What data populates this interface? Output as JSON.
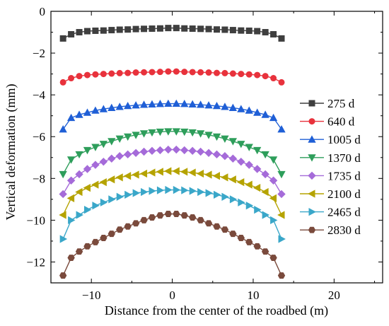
{
  "chart_data": {
    "type": "line",
    "title": "",
    "xlabel": "Distance from the center of the roadbed (m)",
    "ylabel": "Vertical deformation (mm)",
    "xlim": [
      -15,
      26
    ],
    "ylim": [
      -13,
      0
    ],
    "x_ticks": [
      -10,
      0,
      10,
      20
    ],
    "y_ticks": [
      0,
      -2,
      -4,
      -6,
      -8,
      -10,
      -12
    ],
    "grid": false,
    "legend_position": "right",
    "x": [
      -13.5,
      -12.5,
      -11.5,
      -10.5,
      -9.5,
      -8.5,
      -7.5,
      -6.5,
      -5.5,
      -4.5,
      -3.5,
      -2.5,
      -1.5,
      -0.5,
      0.5,
      1.5,
      2.5,
      3.5,
      4.5,
      5.5,
      6.5,
      7.5,
      8.5,
      9.5,
      10.5,
      11.5,
      12.5,
      13.5
    ],
    "series": [
      {
        "name": "275 d",
        "color": "#3f3f3f",
        "marker": "square",
        "values": [
          -1.3,
          -1.1,
          -1.0,
          -0.95,
          -0.93,
          -0.92,
          -0.9,
          -0.88,
          -0.87,
          -0.85,
          -0.84,
          -0.83,
          -0.82,
          -0.8,
          -0.8,
          -0.82,
          -0.83,
          -0.84,
          -0.85,
          -0.87,
          -0.88,
          -0.9,
          -0.92,
          -0.93,
          -0.95,
          -1.0,
          -1.1,
          -1.3
        ]
      },
      {
        "name": "640 d",
        "color": "#e8323c",
        "marker": "circle",
        "values": [
          -3.4,
          -3.2,
          -3.1,
          -3.05,
          -3.02,
          -3.0,
          -2.98,
          -2.96,
          -2.95,
          -2.93,
          -2.92,
          -2.91,
          -2.9,
          -2.88,
          -2.88,
          -2.9,
          -2.91,
          -2.92,
          -2.93,
          -2.95,
          -2.96,
          -2.98,
          -3.0,
          -3.02,
          -3.05,
          -3.1,
          -3.2,
          -3.4
        ]
      },
      {
        "name": "1005 d",
        "color": "#1f5fd6",
        "marker": "triangle-up",
        "values": [
          -5.65,
          -5.1,
          -4.95,
          -4.85,
          -4.75,
          -4.68,
          -4.62,
          -4.57,
          -4.53,
          -4.5,
          -4.47,
          -4.45,
          -4.43,
          -4.42,
          -4.42,
          -4.43,
          -4.45,
          -4.47,
          -4.5,
          -4.53,
          -4.57,
          -4.62,
          -4.68,
          -4.75,
          -4.85,
          -4.95,
          -5.1,
          -5.65
        ]
      },
      {
        "name": "1370 d",
        "color": "#2e9e5b",
        "marker": "triangle-down",
        "values": [
          -7.8,
          -7.1,
          -6.85,
          -6.65,
          -6.5,
          -6.35,
          -6.22,
          -6.1,
          -6.0,
          -5.92,
          -5.85,
          -5.8,
          -5.77,
          -5.75,
          -5.75,
          -5.77,
          -5.8,
          -5.85,
          -5.92,
          -6.0,
          -6.1,
          -6.22,
          -6.35,
          -6.5,
          -6.65,
          -6.85,
          -7.1,
          -7.8
        ]
      },
      {
        "name": "1735 d",
        "color": "#a56bd9",
        "marker": "diamond",
        "values": [
          -8.75,
          -8.1,
          -7.8,
          -7.55,
          -7.35,
          -7.2,
          -7.05,
          -6.93,
          -6.85,
          -6.78,
          -6.72,
          -6.68,
          -6.65,
          -6.62,
          -6.62,
          -6.65,
          -6.68,
          -6.72,
          -6.78,
          -6.85,
          -6.93,
          -7.05,
          -7.2,
          -7.35,
          -7.55,
          -7.8,
          -8.1,
          -8.75
        ]
      },
      {
        "name": "2100 d",
        "color": "#b5a300",
        "marker": "triangle-left",
        "values": [
          -9.75,
          -8.95,
          -8.65,
          -8.45,
          -8.3,
          -8.18,
          -8.05,
          -7.95,
          -7.88,
          -7.82,
          -7.77,
          -7.72,
          -7.68,
          -7.65,
          -7.65,
          -7.68,
          -7.72,
          -7.77,
          -7.82,
          -7.88,
          -7.95,
          -8.05,
          -8.18,
          -8.3,
          -8.45,
          -8.65,
          -8.95,
          -9.75
        ]
      },
      {
        "name": "2465 d",
        "color": "#3aa7c9",
        "marker": "triangle-right",
        "values": [
          -10.9,
          -10.0,
          -9.75,
          -9.5,
          -9.3,
          -9.15,
          -9.0,
          -8.88,
          -8.78,
          -8.7,
          -8.65,
          -8.6,
          -8.57,
          -8.55,
          -8.55,
          -8.57,
          -8.6,
          -8.65,
          -8.7,
          -8.78,
          -8.88,
          -9.0,
          -9.15,
          -9.3,
          -9.5,
          -9.75,
          -10.0,
          -10.9
        ]
      },
      {
        "name": "2830 d",
        "color": "#7a4a3c",
        "marker": "hexagon",
        "values": [
          -12.65,
          -11.8,
          -11.5,
          -11.25,
          -11.05,
          -10.85,
          -10.65,
          -10.45,
          -10.3,
          -10.15,
          -10.0,
          -9.87,
          -9.77,
          -9.7,
          -9.7,
          -9.77,
          -9.87,
          -10.0,
          -10.15,
          -10.3,
          -10.45,
          -10.65,
          -10.85,
          -11.05,
          -11.25,
          -11.5,
          -11.8,
          -12.65
        ]
      }
    ]
  }
}
